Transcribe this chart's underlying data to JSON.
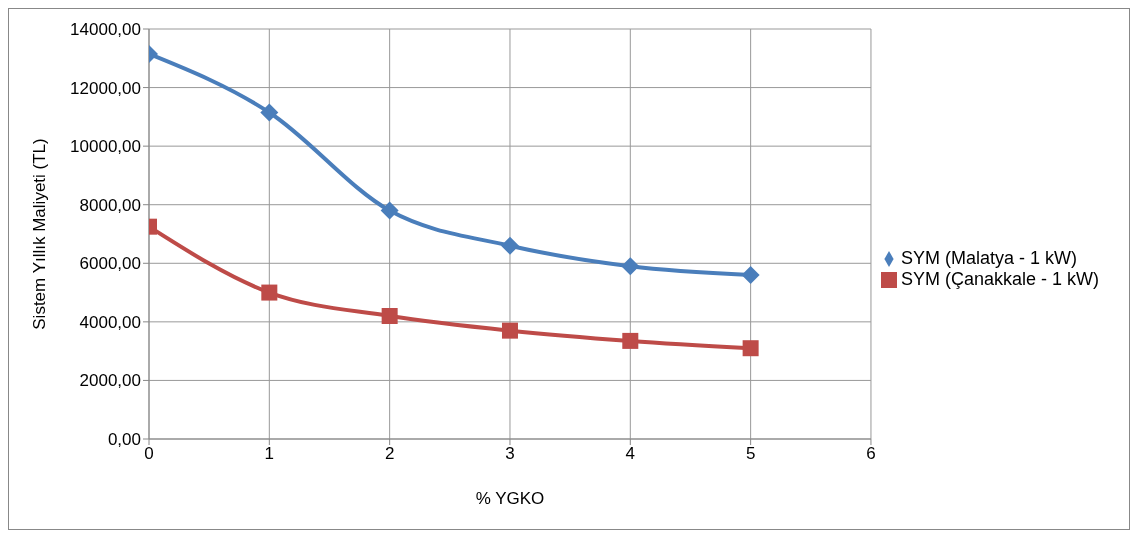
{
  "chart_data": {
    "type": "line",
    "xlabel": "% YGKO",
    "ylabel": "Sistem Yıllık Maliyeti (TL)",
    "x": [
      0,
      1,
      2,
      3,
      4,
      5
    ],
    "series": [
      {
        "name": "SYM (Malatya - 1 kW)",
        "color": "#4a7ebb",
        "marker": "diamond",
        "values": [
          13150,
          11150,
          7800,
          6600,
          5900,
          5600
        ]
      },
      {
        "name": "SYM (Çanakkale - 1 kW)",
        "color": "#be4b48",
        "marker": "square",
        "values": [
          7250,
          5000,
          4200,
          3700,
          3350,
          3100
        ]
      }
    ],
    "xlim": [
      0,
      6
    ],
    "xticks": [
      0,
      1,
      2,
      3,
      4,
      5,
      6
    ],
    "ylim": [
      0,
      14000
    ],
    "yticks": [
      {
        "value": 0,
        "label": "0,00"
      },
      {
        "value": 2000,
        "label": "2000,00"
      },
      {
        "value": 4000,
        "label": "4000,00"
      },
      {
        "value": 6000,
        "label": "6000,00"
      },
      {
        "value": 8000,
        "label": "8000,00"
      },
      {
        "value": 10000,
        "label": "10000,00"
      },
      {
        "value": 12000,
        "label": "12000,00"
      },
      {
        "value": 14000,
        "label": "14000,00"
      }
    ],
    "grid": true,
    "legend": "right",
    "line_style": "solid"
  }
}
